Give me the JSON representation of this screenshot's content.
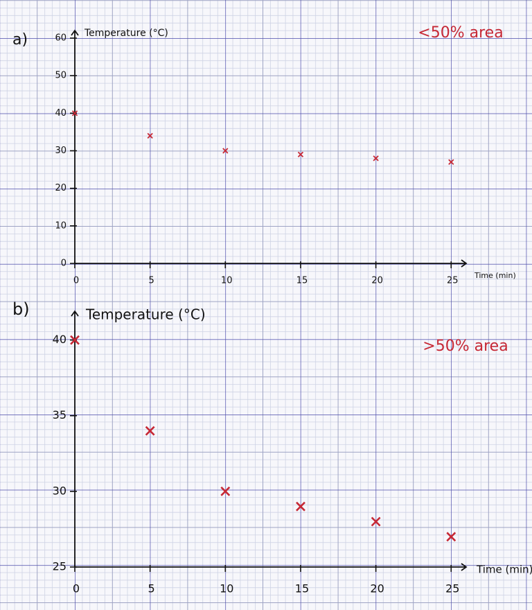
{
  "chart_data": [
    {
      "type": "scatter",
      "label": "a)",
      "y_label": "Temperature (°C)",
      "x_label": "Time (min)",
      "annotation": "<50% area",
      "x": [
        0,
        5,
        10,
        15,
        20,
        25
      ],
      "values": [
        40,
        34,
        30,
        29,
        28,
        27
      ],
      "color": "#c62835",
      "xlim": [
        0,
        26
      ],
      "ylim": [
        0,
        60
      ],
      "xticks": [
        0,
        5,
        10,
        15,
        20,
        25
      ],
      "yticks": [
        0,
        10,
        20,
        30,
        40,
        50,
        60
      ]
    },
    {
      "type": "scatter",
      "label": "b)",
      "y_label": "Temperature (°C)",
      "x_label": "Time (min)",
      "annotation": ">50% area",
      "x": [
        0,
        5,
        10,
        15,
        20,
        25
      ],
      "values": [
        40,
        34,
        30,
        29,
        28,
        27
      ],
      "color": "#c62835",
      "xlim": [
        0,
        26
      ],
      "ylim": [
        25,
        41.4
      ],
      "xticks": [
        0,
        5,
        10,
        15,
        20,
        25
      ],
      "yticks": [
        25,
        30,
        35,
        40
      ]
    }
  ]
}
